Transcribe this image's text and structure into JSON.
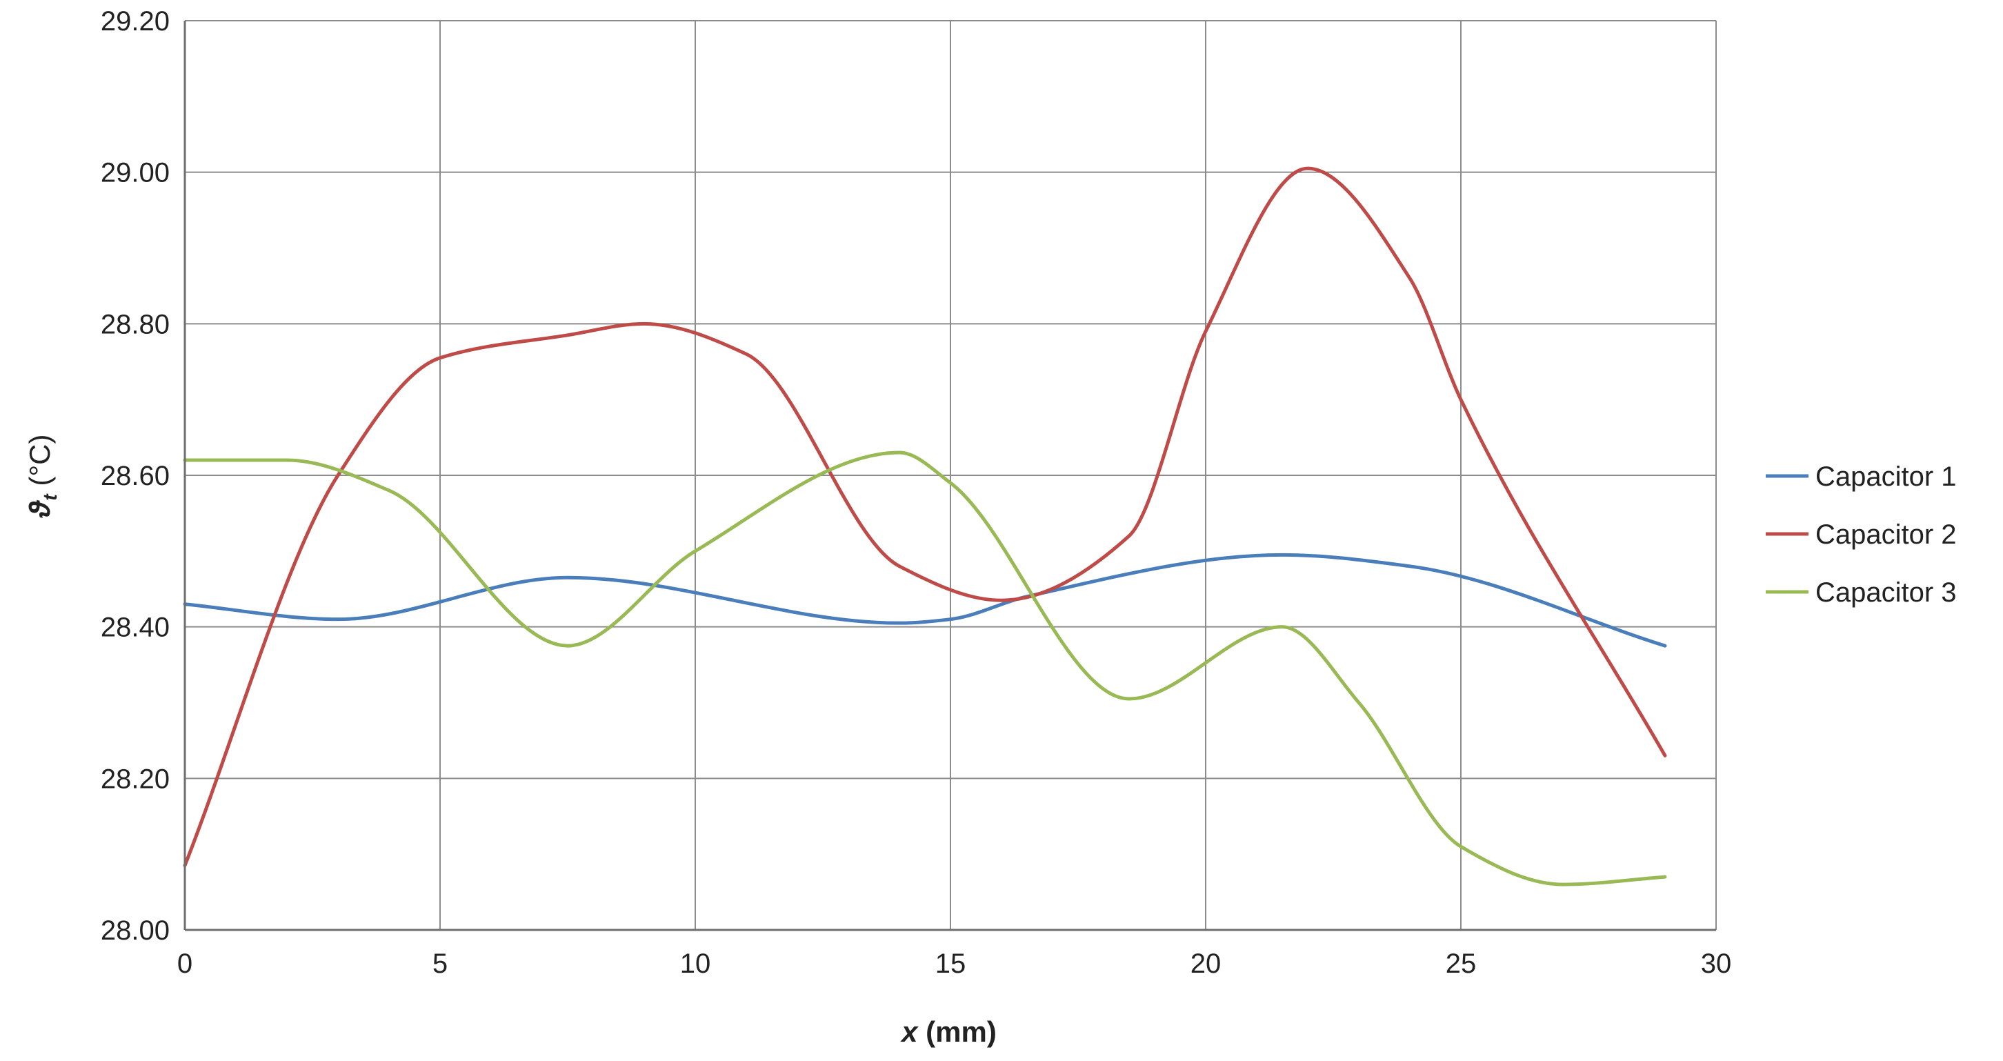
{
  "chart_data": {
    "type": "line",
    "title": "",
    "xlabel": {
      "var": "x",
      "unit": " (mm)"
    },
    "ylabel": {
      "var": "ϑ",
      "sub": "t",
      "unit": " (°C)"
    },
    "xlim": [
      0,
      30
    ],
    "ylim": [
      28.0,
      29.2
    ],
    "xticks": [
      0,
      5,
      10,
      15,
      20,
      25,
      30
    ],
    "xtick_labels": [
      "0",
      "5",
      "10",
      "15",
      "20",
      "25",
      "30"
    ],
    "yticks": [
      28.0,
      28.2,
      28.4,
      28.6,
      28.8,
      29.0,
      29.2
    ],
    "ytick_labels": [
      "28.00",
      "28.20",
      "28.40",
      "28.60",
      "28.80",
      "29.00",
      "29.20"
    ],
    "grid": true,
    "legend_position": "right",
    "series": [
      {
        "name": "Capacitor 1",
        "color": "#4a7ebb",
        "x": [
          0,
          3,
          7.5,
          14,
          15,
          16.5,
          21.5,
          24,
          29
        ],
        "y": [
          28.43,
          28.41,
          28.465,
          28.405,
          28.41,
          28.44,
          28.495,
          28.48,
          28.375
        ]
      },
      {
        "name": "Capacitor 2",
        "color": "#be4b48",
        "x": [
          0,
          3,
          5,
          7.5,
          9,
          11,
          14,
          16,
          18.5,
          20,
          22,
          24,
          25,
          29
        ],
        "y": [
          28.085,
          28.6,
          28.755,
          28.785,
          28.8,
          28.76,
          28.48,
          28.435,
          28.52,
          28.79,
          29.005,
          28.86,
          28.7,
          28.23
        ]
      },
      {
        "name": "Capacitor 3",
        "color": "#98b954",
        "x": [
          0,
          2,
          4,
          7.5,
          10,
          14,
          15,
          18.5,
          21.5,
          23,
          25,
          27,
          29
        ],
        "y": [
          28.62,
          28.62,
          28.58,
          28.375,
          28.5,
          28.63,
          28.59,
          28.305,
          28.4,
          28.3,
          28.11,
          28.06,
          28.07
        ]
      }
    ]
  }
}
